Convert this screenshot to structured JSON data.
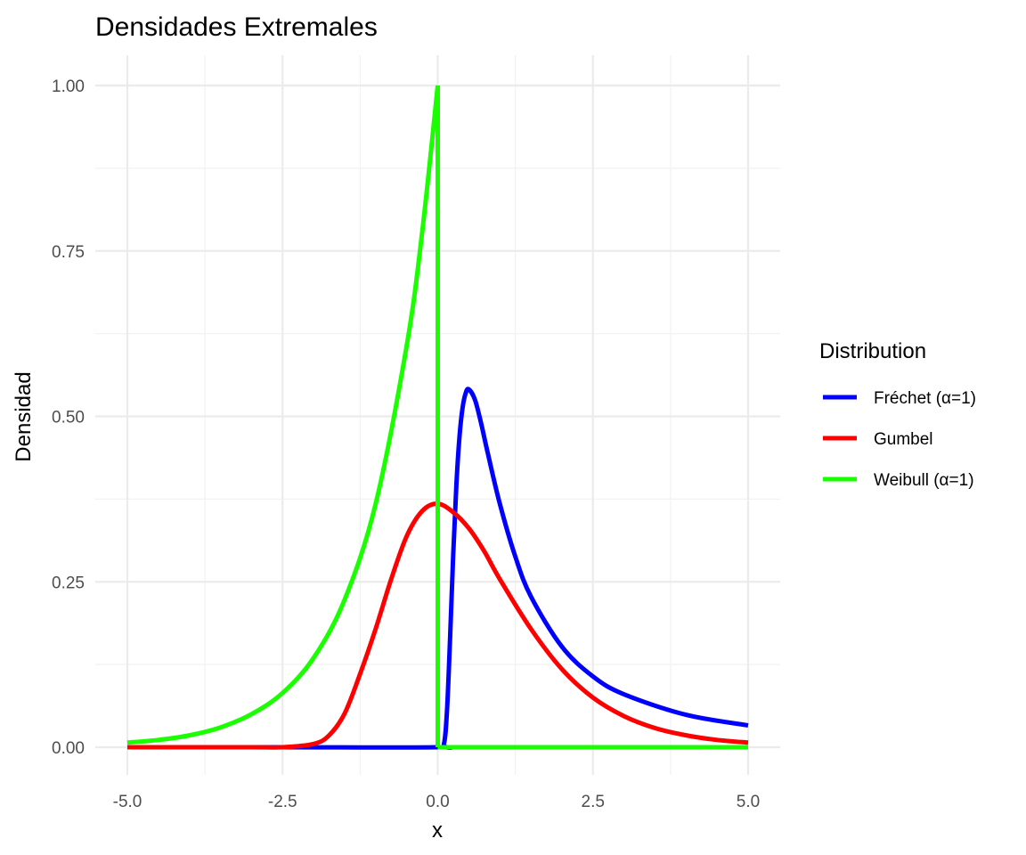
{
  "chart_data": {
    "type": "line",
    "title": "Densidades Extremales",
    "xlabel": "x",
    "ylabel": "Densidad",
    "xlim": [
      -5,
      5
    ],
    "ylim": [
      0,
      1
    ],
    "x_ticks": [
      -5.0,
      -2.5,
      0.0,
      2.5,
      5.0
    ],
    "x_tick_labels": [
      "-5.0",
      "-2.5",
      "0.0",
      "2.5",
      "5.0"
    ],
    "y_ticks": [
      0.0,
      0.25,
      0.5,
      0.75,
      1.0
    ],
    "y_tick_labels": [
      "0.00",
      "0.25",
      "0.50",
      "0.75",
      "1.00"
    ],
    "grid": true,
    "legend": {
      "title": "Distribution",
      "placement": "right",
      "entries": [
        "Fréchet (α=1)",
        "Gumbel",
        "Weibull (α=1)"
      ]
    },
    "series": [
      {
        "name": "Fréchet (α=1)",
        "color": "#0000ff",
        "x": [
          -5,
          -2.5,
          0,
          0.1,
          0.15,
          0.2,
          0.25,
          0.3,
          0.35,
          0.4,
          0.45,
          0.5,
          0.6,
          0.7,
          0.8,
          1.0,
          1.25,
          1.5,
          2.0,
          2.5,
          3.0,
          4.0,
          5.0
        ],
        "y": [
          0,
          0,
          0,
          0.005,
          0.057,
          0.168,
          0.293,
          0.396,
          0.469,
          0.513,
          0.535,
          0.541,
          0.525,
          0.489,
          0.447,
          0.368,
          0.288,
          0.228,
          0.152,
          0.107,
          0.08,
          0.049,
          0.033
        ]
      },
      {
        "name": "Gumbel",
        "color": "#ff0000",
        "x": [
          -5,
          -3,
          -2.5,
          -2,
          -1.75,
          -1.5,
          -1.25,
          -1,
          -0.75,
          -0.5,
          -0.25,
          0,
          0.25,
          0.5,
          0.75,
          1,
          1.5,
          2,
          2.5,
          3,
          3.5,
          4,
          4.5,
          5
        ],
        "y": [
          0,
          0,
          0,
          0.005,
          0.018,
          0.051,
          0.111,
          0.179,
          0.254,
          0.319,
          0.357,
          0.368,
          0.355,
          0.331,
          0.296,
          0.254,
          0.179,
          0.118,
          0.075,
          0.047,
          0.029,
          0.018,
          0.011,
          0.007
        ]
      },
      {
        "name": "Weibull (α=1)",
        "color": "#1aff00",
        "x": [
          -5,
          -4.5,
          -4,
          -3.5,
          -3,
          -2.5,
          -2,
          -1.5,
          -1,
          -0.5,
          -0.25,
          0,
          0,
          0.5,
          1,
          2,
          3,
          4,
          5
        ],
        "y": [
          0.007,
          0.011,
          0.018,
          0.03,
          0.05,
          0.082,
          0.135,
          0.223,
          0.368,
          0.607,
          0.779,
          1.0,
          0,
          0,
          0,
          0,
          0,
          0,
          0
        ]
      }
    ]
  }
}
